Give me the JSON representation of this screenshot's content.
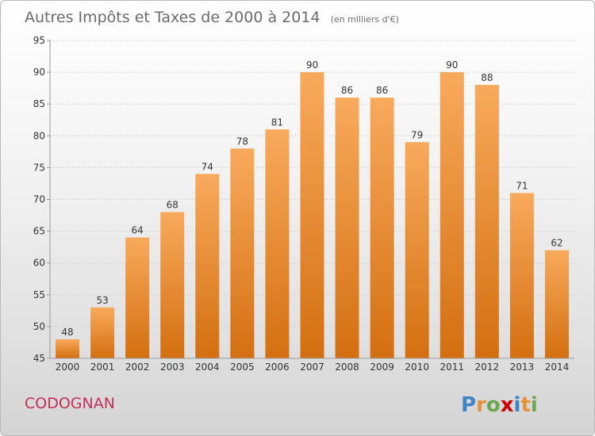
{
  "chart_data": {
    "type": "bar",
    "title": "Autres Impôts et Taxes de 2000 à 2014",
    "subtitle": "(en milliers d'€)",
    "categories": [
      "2000",
      "2001",
      "2002",
      "2003",
      "2004",
      "2005",
      "2006",
      "2007",
      "2008",
      "2009",
      "2010",
      "2011",
      "2012",
      "2013",
      "2014"
    ],
    "values": [
      48,
      53,
      64,
      68,
      74,
      78,
      81,
      90,
      86,
      86,
      79,
      90,
      88,
      71,
      62
    ],
    "ylim": [
      45,
      95
    ],
    "yticks": [
      45,
      50,
      55,
      60,
      65,
      70,
      75,
      80,
      85,
      90,
      95
    ],
    "grid": true,
    "bar_color": "#f0912f",
    "bar_color_light": "#f8aa5c",
    "bar_color_dark": "#d36f10"
  },
  "footer": {
    "commune": "CODOGNAN",
    "logo_letters": [
      "P",
      "r",
      "o",
      "x",
      "i",
      "t",
      "i"
    ],
    "logo_colors": [
      "#3d85c6",
      "#e69138",
      "#6aa84f",
      "#cc0000",
      "#3d85c6",
      "#e69138",
      "#6aa84f"
    ]
  }
}
